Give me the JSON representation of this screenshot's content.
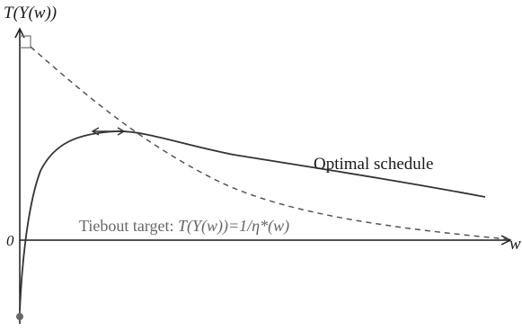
{
  "diagram": {
    "y_axis_label": "T(Y(w))",
    "x_axis_label": "w",
    "origin_label": "0",
    "curve_label": "Optimal schedule",
    "dashed_label": {
      "prefix": "Tiebout target: ",
      "formula": "T(Y(w))=1/η*(w)"
    }
  },
  "colors": {
    "axis": "#1a1a1a",
    "solid_curve": "#333333",
    "dashed_curve": "#555555",
    "tiebout_text": "#666666",
    "dot": "#666666"
  }
}
